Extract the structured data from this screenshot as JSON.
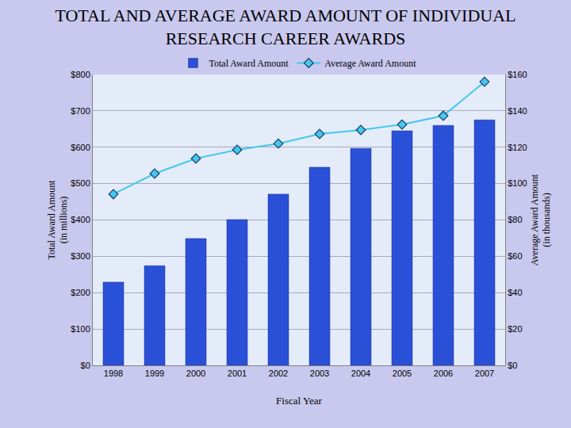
{
  "chart_data": {
    "type": "bar",
    "title": "TOTAL AND AVERAGE AWARD AMOUNT OF INDIVIDUAL RESEARCH CAREER AWARDS",
    "x_label": "Fiscal Year",
    "y_label": "Total Award Amount (in millions)",
    "y2_label": "Average Award Amount (in thousands)",
    "categories": [
      "1998",
      "1999",
      "2000",
      "2001",
      "2002",
      "2003",
      "2004",
      "2005",
      "2006",
      "2007"
    ],
    "series": [
      {
        "name": "Total Award Amount",
        "type": "bar",
        "color": "#2b50d8",
        "values": [
          229,
          274,
          349,
          401,
          471,
          545,
          597,
          645,
          660,
          675
        ]
      },
      {
        "name": "Average Award Amount",
        "type": "line",
        "axis": "y2",
        "color": "#44c8ec",
        "marker": "diamond",
        "line_style": "solid",
        "values": [
          94.2,
          105.5,
          113.8,
          118.6,
          122,
          127.3,
          129.5,
          132.5,
          137.3,
          156
        ]
      }
    ],
    "ylim": [
      0,
      800
    ],
    "yticks": [
      {
        "value": 0,
        "label": "$0"
      },
      {
        "value": 100,
        "label": "$100"
      },
      {
        "value": 200,
        "label": "$200"
      },
      {
        "value": 300,
        "label": "$300"
      },
      {
        "value": 400,
        "label": "$400"
      },
      {
        "value": 500,
        "label": "$500"
      },
      {
        "value": 600,
        "label": "$600"
      },
      {
        "value": 700,
        "label": "$700"
      },
      {
        "value": 800,
        "label": "$800"
      }
    ],
    "y2lim": [
      0,
      160
    ],
    "y2ticks": [
      {
        "value": 0,
        "label": "$0"
      },
      {
        "value": 20,
        "label": "$20"
      },
      {
        "value": 40,
        "label": "$40"
      },
      {
        "value": 60,
        "label": "$60"
      },
      {
        "value": 80,
        "label": "$80"
      },
      {
        "value": 100,
        "label": "$100"
      },
      {
        "value": 120,
        "label": "$120"
      },
      {
        "value": 140,
        "label": "$140"
      },
      {
        "value": 160,
        "label": "$160"
      }
    ],
    "grid": true,
    "legend": "top"
  }
}
